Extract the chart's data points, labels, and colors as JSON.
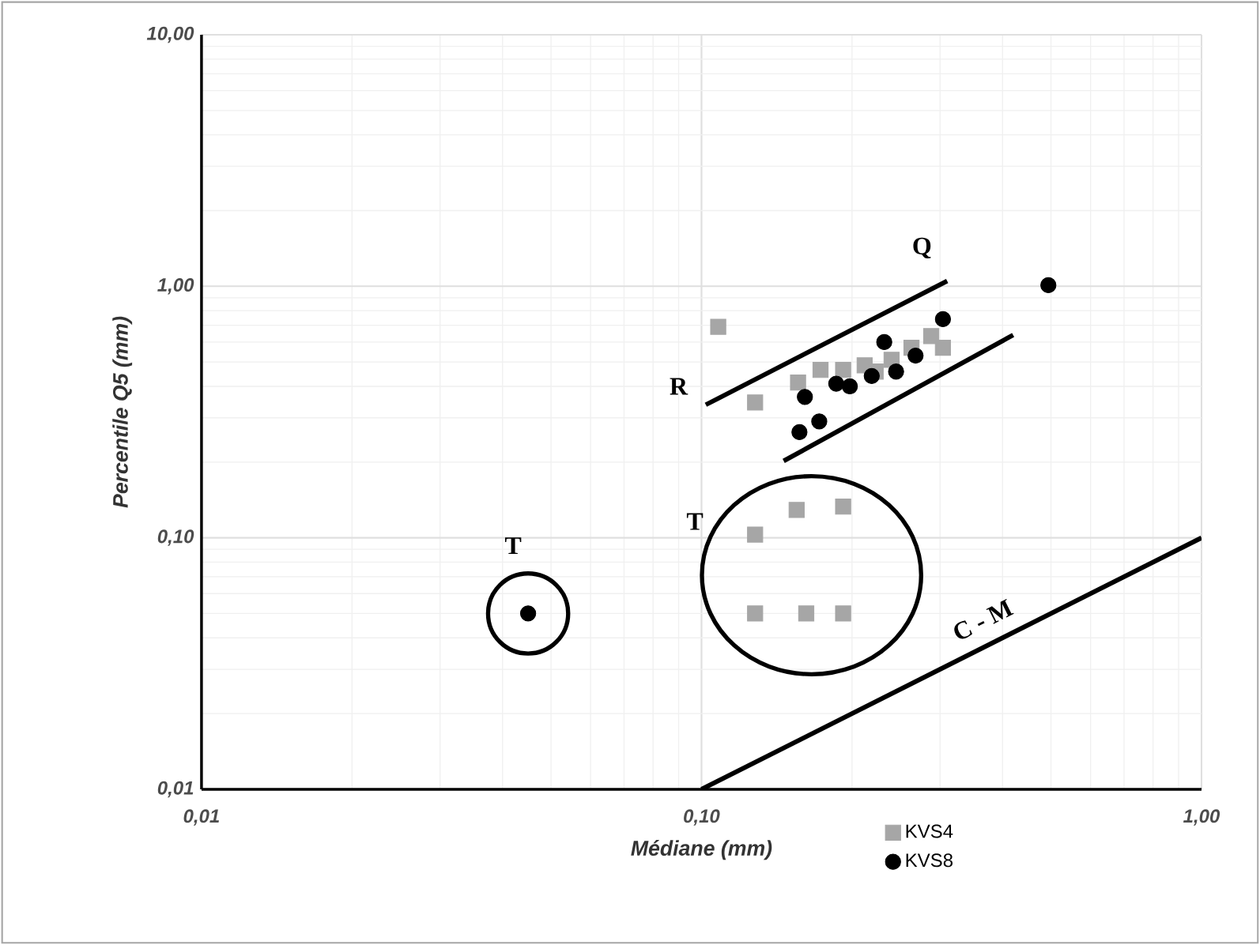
{
  "chart_data": {
    "type": "scatter",
    "xlabel": "Médiane (mm)",
    "ylabel": "Percentile Q5 (mm)",
    "log": "xy",
    "grid": true,
    "legend": "bottom",
    "xlim": [
      0.01,
      1
    ],
    "ylim": [
      0.01,
      10
    ],
    "xticks": [
      {
        "value": 0.01,
        "label": "0,01"
      },
      {
        "value": 0.1,
        "label": "0,10"
      },
      {
        "value": 1,
        "label": "1,00"
      }
    ],
    "yticks": [
      {
        "value": 0.01,
        "label": "0,01"
      },
      {
        "value": 0.1,
        "label": "0,10"
      },
      {
        "value": 1,
        "label": "1,00"
      },
      {
        "value": 10,
        "label": "10,00"
      }
    ],
    "series": [
      {
        "name": "KVS4",
        "color": "#a6a6a6",
        "marker": "square",
        "x": [
          0.108,
          0.128,
          0.156,
          0.173,
          0.192,
          0.212,
          0.223,
          0.24,
          0.263,
          0.288,
          0.304,
          0.128,
          0.155,
          0.192,
          0.128,
          0.162,
          0.192
        ],
        "values": [
          0.69,
          0.345,
          0.414,
          0.465,
          0.465,
          0.485,
          0.458,
          0.51,
          0.57,
          0.634,
          0.57,
          0.103,
          0.129,
          0.133,
          0.05,
          0.05,
          0.05
        ]
      },
      {
        "name": "KVS8",
        "color": "#000000",
        "marker": "circle",
        "x": [
          0.045,
          0.157,
          0.172,
          0.161,
          0.186,
          0.198,
          0.219,
          0.232,
          0.245,
          0.268,
          0.304,
          0.494
        ],
        "values": [
          0.05,
          0.263,
          0.29,
          0.363,
          0.41,
          0.4,
          0.44,
          0.6,
          0.458,
          0.53,
          0.74,
          1.01
        ]
      },
      {
        "type": "line",
        "color": "#000000",
        "x": [
          0.102,
          0.31
        ],
        "values": [
          0.338,
          1.05
        ]
      },
      {
        "type": "line",
        "color": "#000000",
        "x": [
          0.146,
          0.42
        ],
        "values": [
          0.202,
          0.64
        ]
      },
      {
        "type": "line",
        "color": "#000000",
        "x": [
          0.1,
          1
        ],
        "values": [
          0.01,
          0.1
        ]
      }
    ],
    "annotations": [
      "R",
      "Q",
      "T",
      "T",
      "C - M"
    ]
  }
}
